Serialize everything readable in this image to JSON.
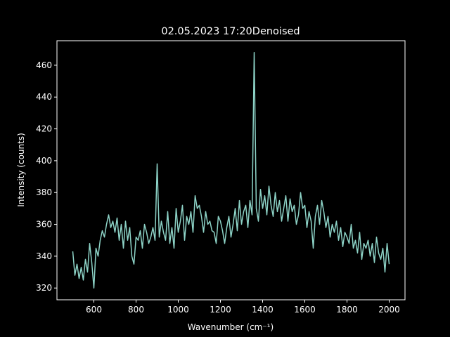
{
  "chart_data": {
    "type": "line",
    "title": "02.05.2023 17:20Denoised",
    "x_label": "Wavenumber (cm⁻¹)",
    "y_label": "Intensity (counts)",
    "x": [
      500,
      510,
      520,
      530,
      540,
      550,
      560,
      570,
      580,
      590,
      600,
      610,
      620,
      630,
      640,
      650,
      660,
      670,
      680,
      690,
      700,
      710,
      720,
      730,
      740,
      750,
      760,
      770,
      780,
      790,
      800,
      810,
      820,
      830,
      840,
      850,
      860,
      870,
      880,
      890,
      900,
      910,
      920,
      930,
      940,
      950,
      960,
      970,
      980,
      990,
      1000,
      1010,
      1020,
      1030,
      1040,
      1050,
      1060,
      1070,
      1080,
      1090,
      1100,
      1110,
      1120,
      1130,
      1140,
      1150,
      1160,
      1170,
      1180,
      1190,
      1200,
      1210,
      1220,
      1230,
      1240,
      1250,
      1260,
      1270,
      1280,
      1290,
      1300,
      1310,
      1320,
      1330,
      1340,
      1350,
      1360,
      1370,
      1380,
      1390,
      1400,
      1410,
      1420,
      1430,
      1440,
      1450,
      1460,
      1470,
      1480,
      1490,
      1500,
      1510,
      1520,
      1530,
      1540,
      1550,
      1560,
      1570,
      1580,
      1590,
      1600,
      1610,
      1620,
      1630,
      1640,
      1650,
      1660,
      1670,
      1680,
      1690,
      1700,
      1710,
      1720,
      1730,
      1740,
      1750,
      1760,
      1770,
      1780,
      1790,
      1800,
      1810,
      1820,
      1830,
      1840,
      1850,
      1860,
      1870,
      1880,
      1890,
      1900,
      1910,
      1920,
      1930,
      1940,
      1950,
      1960,
      1970,
      1980,
      1990,
      2000
    ],
    "series": [
      {
        "color": "#8dd3c7",
        "values": [
          343,
          328,
          335,
          326,
          333,
          325,
          338,
          330,
          348,
          336,
          320,
          345,
          340,
          350,
          356,
          352,
          360,
          366,
          358,
          362,
          355,
          364,
          350,
          360,
          345,
          362,
          350,
          358,
          340,
          335,
          352,
          350,
          356,
          345,
          360,
          355,
          348,
          352,
          358,
          350,
          398,
          352,
          362,
          355,
          350,
          368,
          348,
          358,
          345,
          370,
          355,
          362,
          372,
          350,
          365,
          360,
          368,
          355,
          378,
          370,
          372,
          365,
          355,
          368,
          360,
          362,
          356,
          355,
          348,
          365,
          362,
          356,
          348,
          358,
          365,
          352,
          360,
          370,
          356,
          375,
          360,
          368,
          372,
          358,
          375,
          366,
          468,
          370,
          362,
          382,
          370,
          378,
          366,
          384,
          372,
          365,
          380,
          368,
          375,
          362,
          370,
          378,
          362,
          376,
          368,
          372,
          360,
          366,
          380,
          370,
          372,
          358,
          368,
          362,
          345,
          365,
          372,
          360,
          375,
          368,
          358,
          365,
          352,
          360,
          355,
          362,
          350,
          358,
          346,
          355,
          352,
          348,
          360,
          345,
          350,
          342,
          355,
          338,
          348,
          345,
          350,
          340,
          348,
          336,
          352,
          342,
          338,
          345,
          330,
          348,
          335
        ]
      }
    ],
    "xlim": [
      425,
      2075
    ],
    "ylim": [
      312.6,
      475.4
    ],
    "xticks": [
      600,
      800,
      1000,
      1200,
      1400,
      1600,
      1800,
      2000
    ],
    "yticks": [
      320,
      340,
      360,
      380,
      400,
      420,
      440,
      460
    ]
  }
}
